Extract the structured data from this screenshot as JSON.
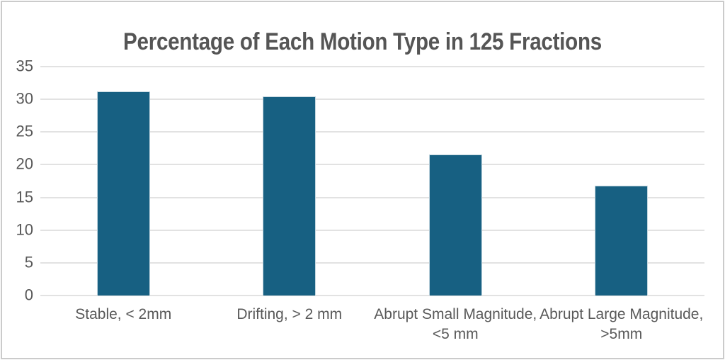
{
  "chart_data": {
    "type": "bar",
    "title": "Percentage of Each Motion Type in 125 Fractions",
    "categories": [
      "Stable, < 2mm",
      "Drifting, > 2 mm",
      "Abrupt Small Magnitude, <5 mm",
      "Abrupt Large Magnitude, >5mm"
    ],
    "values": [
      31.2,
      30.4,
      21.6,
      16.8
    ],
    "xlabel": "",
    "ylabel": "",
    "ylim": [
      0,
      35
    ],
    "yticks": [
      0,
      5,
      10,
      15,
      20,
      25,
      30,
      35
    ],
    "grid": true,
    "legend": "none"
  },
  "colors": {
    "bar_fill": "#176082",
    "bar_border": "#c3d6df",
    "gridline": "#e2e2e2",
    "tick_text": "#595959",
    "label_text": "#595959",
    "title_text": "#555555",
    "frame_border": "#cbcbcb",
    "background": "#ffffff"
  }
}
